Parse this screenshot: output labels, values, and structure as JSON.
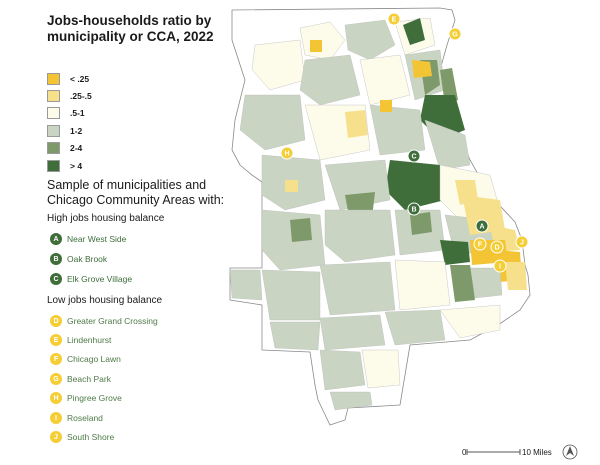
{
  "title": "Jobs-households ratio by municipality or CCA, 2022",
  "legend": [
    {
      "label": "< .25",
      "color": "#f3c534"
    },
    {
      "label": ".25-.5",
      "color": "#f7e08c"
    },
    {
      "label": ".5-1",
      "color": "#fdfbea"
    },
    {
      "label": "1-2",
      "color": "#c9d5c2"
    },
    {
      "label": "2-4",
      "color": "#7f9a6a"
    },
    {
      "label": "> 4",
      "color": "#3f6e3b"
    }
  ],
  "samples": {
    "title": "Sample of municipalities and Chicago Community Areas with:",
    "high": {
      "title": "High jobs housing balance",
      "items": [
        {
          "letter": "A",
          "name": "Near West Side"
        },
        {
          "letter": "B",
          "name": "Oak Brook"
        },
        {
          "letter": "C",
          "name": "Elk Grove Village"
        }
      ]
    },
    "low": {
      "title": "Low jobs housing balance",
      "items": [
        {
          "letter": "D",
          "name": "Greater Grand Crossing"
        },
        {
          "letter": "E",
          "name": "Lindenhurst"
        },
        {
          "letter": "F",
          "name": "Chicago Lawn"
        },
        {
          "letter": "G",
          "name": "Beach Park"
        },
        {
          "letter": "H",
          "name": "Pingree Grove"
        },
        {
          "letter": "I",
          "name": "Roseland"
        },
        {
          "letter": "J",
          "name": "South Shore"
        }
      ]
    }
  },
  "scale": {
    "start": "0",
    "end": "10 Miles"
  },
  "map_markers": [
    {
      "letter": "E",
      "group": "low"
    },
    {
      "letter": "G",
      "group": "low"
    },
    {
      "letter": "H",
      "group": "low"
    },
    {
      "letter": "C",
      "group": "high"
    },
    {
      "letter": "B",
      "group": "high"
    },
    {
      "letter": "A",
      "group": "high"
    },
    {
      "letter": "F",
      "group": "low"
    },
    {
      "letter": "D",
      "group": "low"
    },
    {
      "letter": "I",
      "group": "low"
    },
    {
      "letter": "J",
      "group": "low"
    }
  ]
}
